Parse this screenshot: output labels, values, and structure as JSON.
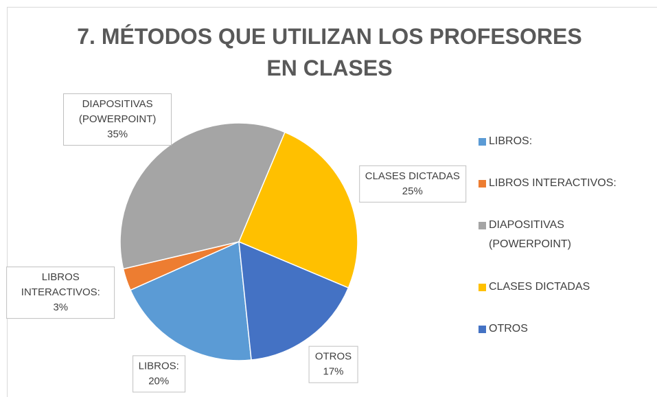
{
  "chart_data": {
    "type": "pie",
    "title": "7. MÉTODOS QUE UTILIZAN LOS PROFESORES EN CLASES",
    "categories": [
      "LIBROS:",
      "LIBROS INTERACTIVOS:",
      "DIAPOSITIVAS (POWERPOINT)",
      "CLASES DICTADAS",
      "OTROS"
    ],
    "values": [
      20,
      3,
      35,
      25,
      17
    ],
    "value_labels": [
      "20%",
      "3%",
      "35%",
      "25%",
      "17%"
    ],
    "colors": [
      "#5b9bd5",
      "#ed7d31",
      "#a5a5a5",
      "#ffc000",
      "#4472c4"
    ],
    "legend": "right"
  }
}
